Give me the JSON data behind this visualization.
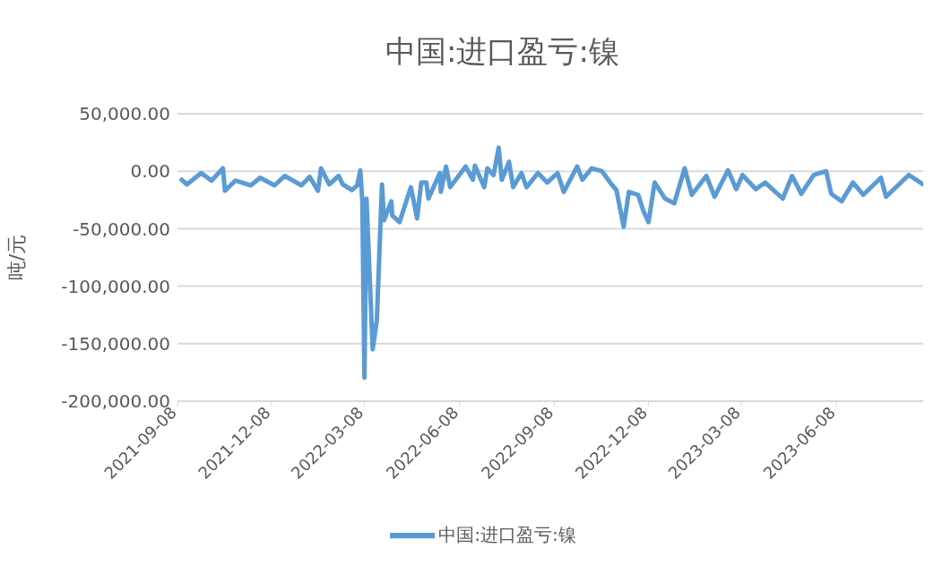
{
  "chart_data": {
    "type": "line",
    "title": "中国:进口盈亏:镍",
    "ylabel": "吨/元",
    "x": [
      "2021-09-12",
      "2021-09-17",
      "2021-10-01",
      "2021-10-11",
      "2021-10-22",
      "2021-10-24",
      "2021-11-03",
      "2021-11-18",
      "2021-11-27",
      "2021-12-11",
      "2021-12-21",
      "2022-01-06",
      "2022-01-14",
      "2022-01-22",
      "2022-01-25",
      "2022-02-02",
      "2022-02-11",
      "2022-02-15",
      "2022-02-24",
      "2022-03-01",
      "2022-03-04",
      "2022-03-06",
      "2022-03-08",
      "2022-03-10",
      "2022-03-16",
      "2022-03-20",
      "2022-03-25",
      "2022-03-27",
      "2022-04-03",
      "2022-04-04",
      "2022-04-11",
      "2022-04-22",
      "2022-04-28",
      "2022-05-02",
      "2022-05-07",
      "2022-05-09",
      "2022-05-20",
      "2022-05-21",
      "2022-05-26",
      "2022-05-30",
      "2022-06-14",
      "2022-06-21",
      "2022-06-23",
      "2022-07-02",
      "2022-07-05",
      "2022-07-11",
      "2022-07-16",
      "2022-07-19",
      "2022-07-26",
      "2022-07-30",
      "2022-08-07",
      "2022-08-12",
      "2022-08-23",
      "2022-09-01",
      "2022-09-11",
      "2022-09-17",
      "2022-09-30",
      "2022-10-05",
      "2022-10-14",
      "2022-10-24",
      "2022-11-03",
      "2022-11-07",
      "2022-11-14",
      "2022-11-19",
      "2022-11-28",
      "2022-12-03",
      "2022-12-08",
      "2022-12-14",
      "2022-12-24",
      "2023-01-02",
      "2023-01-12",
      "2023-01-19",
      "2023-02-02",
      "2023-02-10",
      "2023-02-23",
      "2023-03-03",
      "2023-03-09",
      "2023-03-22",
      "2023-03-31",
      "2023-04-17",
      "2023-04-26",
      "2023-05-05",
      "2023-05-17",
      "2023-05-29",
      "2023-06-03",
      "2023-06-13",
      "2023-06-24",
      "2023-07-04",
      "2023-07-21",
      "2023-07-26",
      "2023-08-17",
      "2023-08-31"
    ],
    "series": [
      {
        "name": "中国:进口盈亏:镍",
        "color": "#5b9bd5",
        "values": [
          -7400,
          -11500,
          -1600,
          -8200,
          2500,
          -17000,
          -8200,
          -12300,
          -5700,
          -12300,
          -4100,
          -12300,
          -4900,
          -17000,
          2500,
          -11500,
          -4100,
          -11500,
          -16400,
          -12300,
          800,
          -26200,
          -179500,
          -23800,
          -155000,
          -130000,
          -11500,
          -42600,
          -26200,
          -38500,
          -44300,
          -13900,
          -41000,
          -9800,
          -9800,
          -23800,
          -1600,
          -18000,
          4100,
          -13900,
          4100,
          -7400,
          4900,
          -13900,
          2500,
          -3300,
          20500,
          -7400,
          8200,
          -13900,
          -1600,
          -13900,
          -1600,
          -9800,
          -1600,
          -18000,
          4100,
          -7400,
          2500,
          0,
          -12300,
          -16400,
          -48400,
          -18000,
          -20500,
          -34400,
          -44300,
          -9800,
          -23800,
          -27900,
          2500,
          -20500,
          -4100,
          -22100,
          800,
          -15600,
          -3300,
          -15600,
          -9800,
          -23800,
          -4100,
          -19700,
          -3300,
          0,
          -19700,
          -26200,
          -9800,
          -20500,
          -5700,
          -22100,
          -3300,
          -11500
        ]
      }
    ],
    "xlim": [
      "2021-09-08",
      "2023-08-31"
    ],
    "xticks": [
      "2021-09-08",
      "2021-12-08",
      "2022-03-08",
      "2022-06-08",
      "2022-09-08",
      "2022-12-08",
      "2023-03-08",
      "2023-06-08"
    ],
    "ylim": [
      -200000,
      50000
    ],
    "yticks": [
      {
        "value": -200000,
        "label": "-200,000.00"
      },
      {
        "value": -150000,
        "label": "-150,000.00"
      },
      {
        "value": -100000,
        "label": "-100,000.00"
      },
      {
        "value": -50000,
        "label": "-50,000.00"
      },
      {
        "value": 0,
        "label": "0.00"
      },
      {
        "value": 50000,
        "label": "50,000.00"
      }
    ],
    "grid": "y",
    "legend": "bottom",
    "marker": "none",
    "line_style": "solid"
  }
}
